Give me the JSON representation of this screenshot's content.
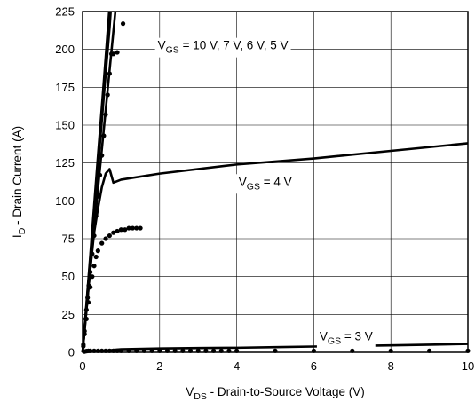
{
  "chart_data": {
    "type": "line",
    "title": "",
    "xlabel_main": "V",
    "xlabel_sub": "DS",
    "xlabel_rest": " - Drain-to-Source Voltage (V)",
    "ylabel_main": "I",
    "ylabel_sub": "D",
    "ylabel_rest": " - Drain Current (A)",
    "xlim": [
      0,
      10
    ],
    "ylim": [
      0,
      225
    ],
    "xticks": [
      0,
      2,
      4,
      6,
      8,
      10
    ],
    "yticks": [
      0,
      25,
      50,
      75,
      100,
      125,
      150,
      175,
      200,
      225
    ],
    "grid": true,
    "annotations": [
      {
        "main": "V",
        "sub": "GS",
        "rest": " = 10 V, 7 V, 6 V, 5 V",
        "x": 1.95,
        "y": 200
      },
      {
        "main": "V",
        "sub": "GS",
        "rest": " = 4 V",
        "x": 4.05,
        "y": 110
      },
      {
        "main": "V",
        "sub": "GS",
        "rest": " = 3 V",
        "x": 6.15,
        "y": 8
      }
    ],
    "series": [
      {
        "values": [
          [
            0,
            0
          ],
          [
            0.1,
            32
          ],
          [
            0.2,
            64
          ],
          [
            0.3,
            97
          ],
          [
            0.4,
            130
          ],
          [
            0.5,
            162
          ],
          [
            0.6,
            195
          ],
          [
            0.69,
            225
          ]
        ]
      },
      {
        "values": [
          [
            0,
            0
          ],
          [
            0.1,
            31
          ],
          [
            0.2,
            62
          ],
          [
            0.3,
            94
          ],
          [
            0.4,
            126
          ],
          [
            0.5,
            158
          ],
          [
            0.6,
            190
          ],
          [
            0.7,
            221
          ],
          [
            0.71,
            225
          ]
        ]
      },
      {
        "values": [
          [
            0,
            0
          ],
          [
            0.1,
            30
          ],
          [
            0.2,
            60
          ],
          [
            0.3,
            91
          ],
          [
            0.4,
            122
          ],
          [
            0.5,
            153
          ],
          [
            0.6,
            184
          ],
          [
            0.7,
            214
          ],
          [
            0.73,
            225
          ]
        ]
      },
      {
        "values": [
          [
            0,
            0
          ],
          [
            0.2,
            55
          ],
          [
            0.4,
            108
          ],
          [
            0.6,
            160
          ],
          [
            0.8,
            212
          ],
          [
            0.85,
            225
          ]
        ]
      },
      {
        "values": [
          [
            0,
            0
          ],
          [
            0.1,
            28
          ],
          [
            0.2,
            55
          ],
          [
            0.3,
            79
          ],
          [
            0.4,
            95
          ],
          [
            0.5,
            109
          ],
          [
            0.6,
            118
          ],
          [
            0.7,
            121
          ],
          [
            0.8,
            112
          ],
          [
            1,
            114
          ],
          [
            2,
            118
          ],
          [
            4,
            124
          ],
          [
            6,
            128
          ],
          [
            8,
            133
          ],
          [
            10,
            138
          ]
        ]
      },
      {
        "values": [
          [
            0,
            0
          ],
          [
            1,
            2
          ],
          [
            2,
            2.5
          ],
          [
            3,
            2.8
          ],
          [
            4,
            3
          ],
          [
            5,
            3.4
          ],
          [
            6,
            3.8
          ],
          [
            7,
            4.2
          ],
          [
            8,
            4.6
          ],
          [
            9,
            5
          ],
          [
            10,
            5.5
          ]
        ]
      }
    ],
    "markers": [
      {
        "name": "series-a",
        "points": [
          [
            0.02,
            5
          ],
          [
            0.05,
            14
          ],
          [
            0.08,
            22
          ],
          [
            0.1,
            28
          ],
          [
            0.13,
            36
          ],
          [
            0.16,
            44
          ],
          [
            0.2,
            53
          ],
          [
            0.25,
            65
          ],
          [
            0.3,
            77
          ],
          [
            0.35,
            90
          ],
          [
            0.4,
            103
          ],
          [
            0.45,
            117
          ],
          [
            0.5,
            130
          ],
          [
            0.55,
            143
          ],
          [
            0.6,
            157
          ],
          [
            0.65,
            170
          ],
          [
            0.7,
            184
          ],
          [
            0.75,
            197
          ],
          [
            0.8,
            197
          ],
          [
            0.9,
            198
          ],
          [
            1.05,
            217
          ]
        ]
      },
      {
        "name": "series-b",
        "points": [
          [
            0.02,
            4
          ],
          [
            0.05,
            12
          ],
          [
            0.1,
            22
          ],
          [
            0.15,
            33
          ],
          [
            0.2,
            43
          ],
          [
            0.25,
            50
          ],
          [
            0.3,
            57
          ],
          [
            0.35,
            63
          ],
          [
            0.4,
            67
          ],
          [
            0.5,
            72
          ],
          [
            0.6,
            75
          ],
          [
            0.7,
            77
          ],
          [
            0.8,
            79
          ],
          [
            0.9,
            80
          ],
          [
            1,
            81
          ],
          [
            1.1,
            81
          ],
          [
            1.2,
            82
          ],
          [
            1.3,
            82
          ],
          [
            1.4,
            82
          ],
          [
            1.5,
            82
          ]
        ]
      },
      {
        "name": "series-c",
        "points": [
          [
            0.05,
            0.5
          ],
          [
            0.1,
            0.8
          ],
          [
            0.15,
            1
          ],
          [
            0.2,
            1
          ],
          [
            0.3,
            1
          ],
          [
            0.4,
            1
          ],
          [
            0.5,
            1
          ],
          [
            0.6,
            1
          ],
          [
            0.7,
            1
          ],
          [
            0.8,
            1
          ],
          [
            0.9,
            1
          ],
          [
            1,
            1
          ],
          [
            1.2,
            1
          ],
          [
            1.4,
            1
          ],
          [
            1.6,
            1
          ],
          [
            1.8,
            1
          ],
          [
            2,
            1
          ],
          [
            2.2,
            1
          ],
          [
            2.4,
            1
          ],
          [
            2.6,
            1
          ],
          [
            2.8,
            1
          ],
          [
            3,
            1
          ],
          [
            3.2,
            1
          ],
          [
            3.4,
            1
          ],
          [
            3.6,
            1
          ],
          [
            3.8,
            1
          ],
          [
            4,
            1
          ],
          [
            5,
            1
          ],
          [
            6,
            1
          ],
          [
            7,
            1
          ],
          [
            8,
            1
          ],
          [
            9,
            1
          ],
          [
            10,
            1
          ]
        ]
      }
    ]
  }
}
